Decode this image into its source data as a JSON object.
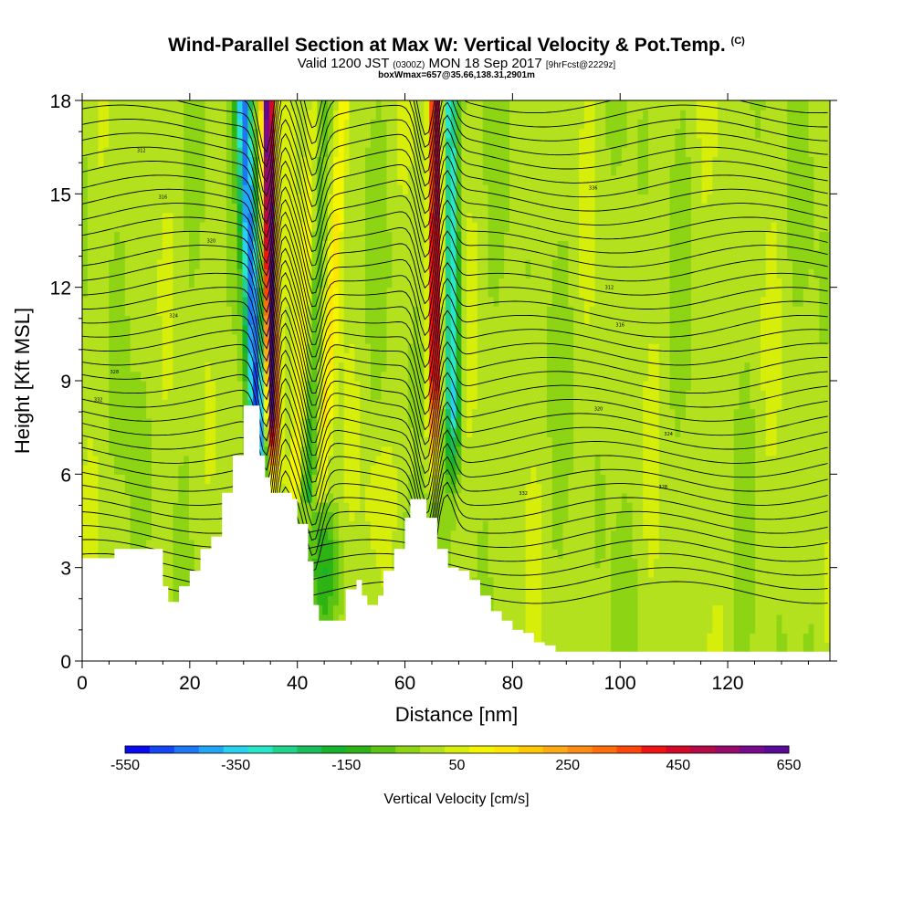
{
  "header": {
    "title_main": "Wind-Parallel Section at Max W: Vertical Velocity & Pot.Temp.",
    "title_mark": "(C)",
    "sub_a": "Valid 1200 JST",
    "sub_b": "(0300Z)",
    "sub_c": "MON 18 Sep 2017",
    "sub_d": "[9hrFcst@2229z]",
    "line3": "boxWmax=657@35.66,138.31,2901m"
  },
  "chart_data": {
    "type": "heatmap",
    "xlabel": "Distance [nm]",
    "ylabel": "Height [Kft MSL]",
    "xlim": [
      0,
      139
    ],
    "ylim": [
      0,
      18
    ],
    "xticks": [
      0,
      20,
      40,
      60,
      80,
      100,
      120
    ],
    "yticks": [
      0,
      3,
      6,
      9,
      12,
      15,
      18
    ],
    "colorbar": {
      "title": "Vertical Velocity [cm/s]",
      "range": [
        -550,
        650
      ],
      "ticks": [
        -550,
        -350,
        -150,
        50,
        250,
        450,
        650
      ],
      "colors": [
        "#0a0af0",
        "#1446f5",
        "#1e78f5",
        "#23a5f5",
        "#28d2ee",
        "#2ae6c8",
        "#20d28c",
        "#19be5a",
        "#14b42d",
        "#2db414",
        "#5ac314",
        "#8cd414",
        "#b4e11e",
        "#d7ee0a",
        "#f5f500",
        "#ffe600",
        "#ffc800",
        "#ffaa14",
        "#ff8c14",
        "#ff6e0a",
        "#ff460a",
        "#f01414",
        "#d20a28",
        "#b40a46",
        "#960a6e",
        "#780a8c",
        "#5a0a96"
      ]
    },
    "jets": [
      {
        "x_center": 36,
        "sign": "up",
        "peak": 650
      },
      {
        "x_center": 33,
        "sign": "down",
        "peak": -450
      },
      {
        "x_center": 66,
        "sign": "up",
        "peak": 550
      },
      {
        "x_center": 69,
        "sign": "down",
        "peak": -350
      }
    ],
    "terrain_profile_kft": [
      [
        0,
        3.3
      ],
      [
        4,
        3.3
      ],
      [
        6,
        3.6
      ],
      [
        13,
        3.6
      ],
      [
        15,
        2.4
      ],
      [
        16,
        1.9
      ],
      [
        18,
        2.4
      ],
      [
        20,
        2.9
      ],
      [
        22,
        3.6
      ],
      [
        24,
        4.0
      ],
      [
        26,
        5.4
      ],
      [
        28,
        6.6
      ],
      [
        30,
        8.2
      ],
      [
        32,
        8.2
      ],
      [
        33,
        6.6
      ],
      [
        34,
        5.9
      ],
      [
        35,
        5.4
      ],
      [
        37,
        5.4
      ],
      [
        39,
        5.2
      ],
      [
        40,
        4.4
      ],
      [
        42,
        3.2
      ],
      [
        43,
        1.8
      ],
      [
        44,
        1.3
      ],
      [
        47,
        1.3
      ],
      [
        49,
        2.3
      ],
      [
        51,
        2.6
      ],
      [
        52,
        2.1
      ],
      [
        53,
        1.8
      ],
      [
        55,
        2.1
      ],
      [
        56,
        2.9
      ],
      [
        58,
        3.6
      ],
      [
        60,
        4.6
      ],
      [
        61,
        5.2
      ],
      [
        63,
        5.2
      ],
      [
        64,
        4.6
      ],
      [
        66,
        3.6
      ],
      [
        68,
        3.0
      ],
      [
        70,
        2.9
      ],
      [
        72,
        2.6
      ],
      [
        74,
        2.1
      ],
      [
        76,
        1.6
      ],
      [
        78,
        1.3
      ],
      [
        80,
        1.0
      ],
      [
        82,
        0.9
      ],
      [
        84,
        0.6
      ],
      [
        86,
        0.5
      ],
      [
        88,
        0.3
      ],
      [
        139,
        0.3
      ]
    ],
    "theta_contour_labels": [
      "312",
      "316",
      "320",
      "324",
      "328",
      "332",
      "336"
    ]
  }
}
